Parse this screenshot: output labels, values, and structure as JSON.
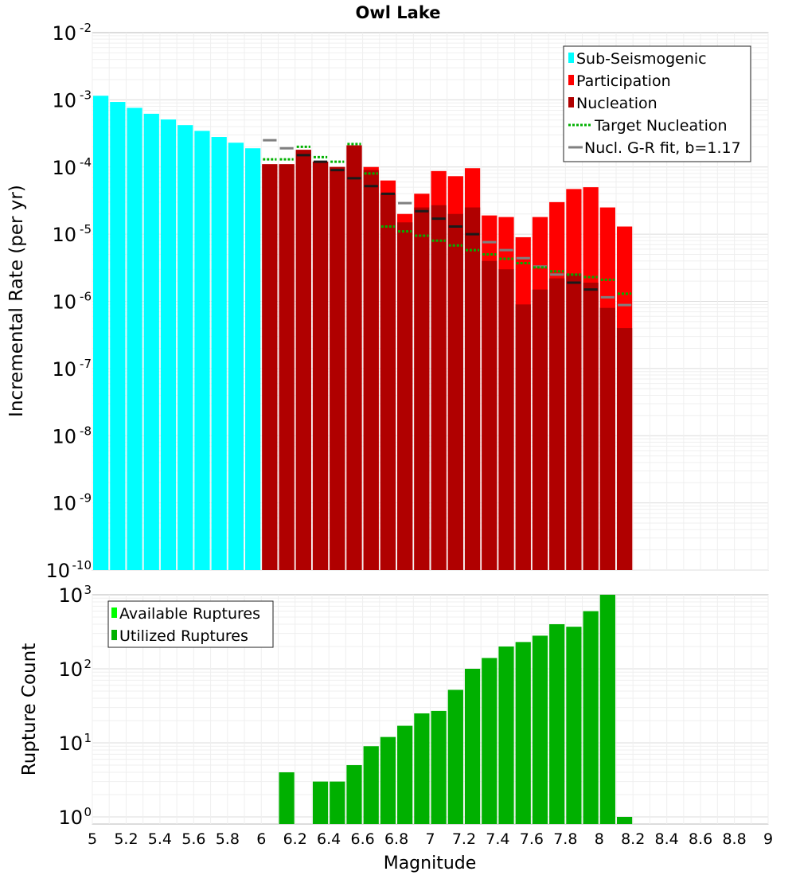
{
  "chart_data": [
    {
      "type": "bar",
      "title": "Owl Lake",
      "ylabel": "Incremental Rate (per yr)",
      "xlabel": "",
      "y_scale": "log",
      "ylim": [
        1e-10,
        0.01
      ],
      "xlim": [
        5,
        9
      ],
      "bin_width": 0.1,
      "y_ticks": [
        {
          "base": "10",
          "exp": "-10"
        },
        {
          "base": "10",
          "exp": "-9"
        },
        {
          "base": "10",
          "exp": "-8"
        },
        {
          "base": "10",
          "exp": "-7"
        },
        {
          "base": "10",
          "exp": "-6"
        },
        {
          "base": "10",
          "exp": "-5"
        },
        {
          "base": "10",
          "exp": "-4"
        },
        {
          "base": "10",
          "exp": "-3"
        },
        {
          "base": "10",
          "exp": "-2"
        }
      ],
      "legend_position": "top-right",
      "legend": [
        {
          "label": "Sub-Seismogenic",
          "color": "#00ffff",
          "kind": "box"
        },
        {
          "label": "Participation",
          "color": "#ff0000",
          "kind": "box"
        },
        {
          "label": "Nucleation",
          "color": "#b00000",
          "kind": "box"
        },
        {
          "label": "Target Nucleation",
          "color": "#00b000",
          "kind": "dotted"
        },
        {
          "label": "Nucl. G-R fit, b=1.17",
          "color": "#808080",
          "kind": "line"
        }
      ],
      "series": [
        {
          "name": "Sub-Seismogenic",
          "color": "#00ffff",
          "x": [
            5.05,
            5.15,
            5.25,
            5.35,
            5.45,
            5.55,
            5.65,
            5.75,
            5.85,
            5.95
          ],
          "values": [
            0.00115,
            0.00093,
            0.00076,
            0.00062,
            0.00051,
            0.00042,
            0.000345,
            0.00028,
            0.00023,
            0.00019
          ]
        },
        {
          "name": "Participation",
          "color": "#ff0000",
          "x": [
            6.05,
            6.15,
            6.25,
            6.35,
            6.45,
            6.55,
            6.65,
            6.75,
            6.85,
            6.95,
            7.05,
            7.15,
            7.25,
            7.35,
            7.45,
            7.55,
            7.65,
            7.75,
            7.85,
            7.95,
            8.05,
            8.15
          ],
          "values": [
            0.00011,
            0.00011,
            0.00018,
            0.00012,
            0.0001,
            0.00021,
            0.0001,
            6.3e-05,
            2e-05,
            4e-05,
            8.7e-05,
            7.3e-05,
            9.6e-05,
            1.9e-05,
            1.8e-05,
            9e-06,
            1.8e-05,
            3e-05,
            4.7e-05,
            5e-05,
            2.5e-05,
            1.3e-05
          ]
        },
        {
          "name": "Nucleation",
          "color": "#b00000",
          "x": [
            6.05,
            6.15,
            6.25,
            6.35,
            6.45,
            6.55,
            6.65,
            6.75,
            6.85,
            6.95,
            7.05,
            7.15,
            7.25,
            7.35,
            7.45,
            7.55,
            7.65,
            7.75,
            7.85,
            7.95,
            8.05,
            8.15
          ],
          "values": [
            0.00011,
            0.00011,
            0.00018,
            0.00012,
            0.0001,
            0.00021,
            9e-05,
            4e-05,
            1.5e-05,
            2.5e-05,
            2.7e-05,
            2e-05,
            2.5e-05,
            4e-06,
            3e-06,
            9e-07,
            1.5e-06,
            2.2e-06,
            2.6e-06,
            1.9e-06,
            8e-07,
            4e-07
          ]
        },
        {
          "name": "Target Nucleation",
          "color": "#00b000",
          "x": [
            6.05,
            6.15,
            6.25,
            6.35,
            6.45,
            6.55,
            6.65,
            6.75,
            6.85,
            6.95,
            7.05,
            7.15,
            7.25,
            7.35,
            7.45,
            7.55,
            7.65,
            7.75,
            7.85,
            7.95,
            8.05,
            8.15
          ],
          "values": [
            0.00013,
            0.00013,
            0.0002,
            0.00014,
            0.00012,
            0.00022,
            8e-05,
            1.3e-05,
            1.1e-05,
            9.5e-06,
            8e-06,
            6.8e-06,
            5.8e-06,
            5e-06,
            4.3e-06,
            3.7e-06,
            3.2e-06,
            2.8e-06,
            2.5e-06,
            2.3e-06,
            2.1e-06,
            1.3e-06
          ]
        },
        {
          "name": "Nucl. G-R fit, b=1.17",
          "color": "#808080",
          "x": [
            6.05,
            6.15,
            6.25,
            6.35,
            6.45,
            6.55,
            6.65,
            6.75,
            6.85,
            6.95,
            7.05,
            7.15,
            7.25,
            7.35,
            7.45,
            7.55,
            7.65,
            7.75,
            7.85,
            7.95,
            8.05,
            8.15
          ],
          "values": [
            0.00025,
            0.00019,
            0.00015,
            0.00012,
            9e-05,
            6.8e-05,
            5.2e-05,
            4e-05,
            2.9e-05,
            2.2e-05,
            1.7e-05,
            1.3e-05,
            1e-05,
            7.6e-06,
            5.8e-06,
            4.4e-06,
            3.3e-06,
            2.5e-06,
            1.9e-06,
            1.5e-06,
            1.15e-06,
            8.8e-07
          ]
        }
      ]
    },
    {
      "type": "bar",
      "title": "",
      "ylabel": "Rupture Count",
      "xlabel": "Magnitude",
      "y_scale": "log",
      "ylim": [
        0.8,
        1000
      ],
      "xlim": [
        5,
        9
      ],
      "bin_width": 0.1,
      "y_ticks": [
        {
          "base": "10",
          "exp": "0"
        },
        {
          "base": "10",
          "exp": "1"
        },
        {
          "base": "10",
          "exp": "2"
        },
        {
          "base": "10",
          "exp": "3"
        }
      ],
      "x_tick_labels": [
        "5",
        "5.2",
        "5.4",
        "5.6",
        "5.8",
        "6",
        "6.2",
        "6.4",
        "6.6",
        "6.8",
        "7",
        "7.2",
        "7.4",
        "7.6",
        "7.8",
        "8",
        "8.2",
        "8.4",
        "8.6",
        "8.8",
        "9"
      ],
      "x_ticks": [
        5,
        5.2,
        5.4,
        5.6,
        5.8,
        6,
        6.2,
        6.4,
        6.6,
        6.8,
        7,
        7.2,
        7.4,
        7.6,
        7.8,
        8,
        8.2,
        8.4,
        8.6,
        8.8,
        9
      ],
      "legend_position": "top-left",
      "legend": [
        {
          "label": "Available Ruptures",
          "color": "#00ff00",
          "kind": "box"
        },
        {
          "label": "Utilized Ruptures",
          "color": "#00b000",
          "kind": "box"
        }
      ],
      "series": [
        {
          "name": "Utilized Ruptures",
          "color": "#00b000",
          "x": [
            6.15,
            6.35,
            6.45,
            6.55,
            6.65,
            6.75,
            6.85,
            6.95,
            7.05,
            7.15,
            7.25,
            7.35,
            7.45,
            7.55,
            7.65,
            7.75,
            7.85,
            7.95,
            8.05,
            8.15
          ],
          "values": [
            4,
            3,
            3,
            5,
            9,
            12,
            17,
            25,
            27,
            52,
            100,
            140,
            200,
            230,
            280,
            400,
            370,
            600,
            1000,
            1
          ]
        }
      ]
    }
  ]
}
